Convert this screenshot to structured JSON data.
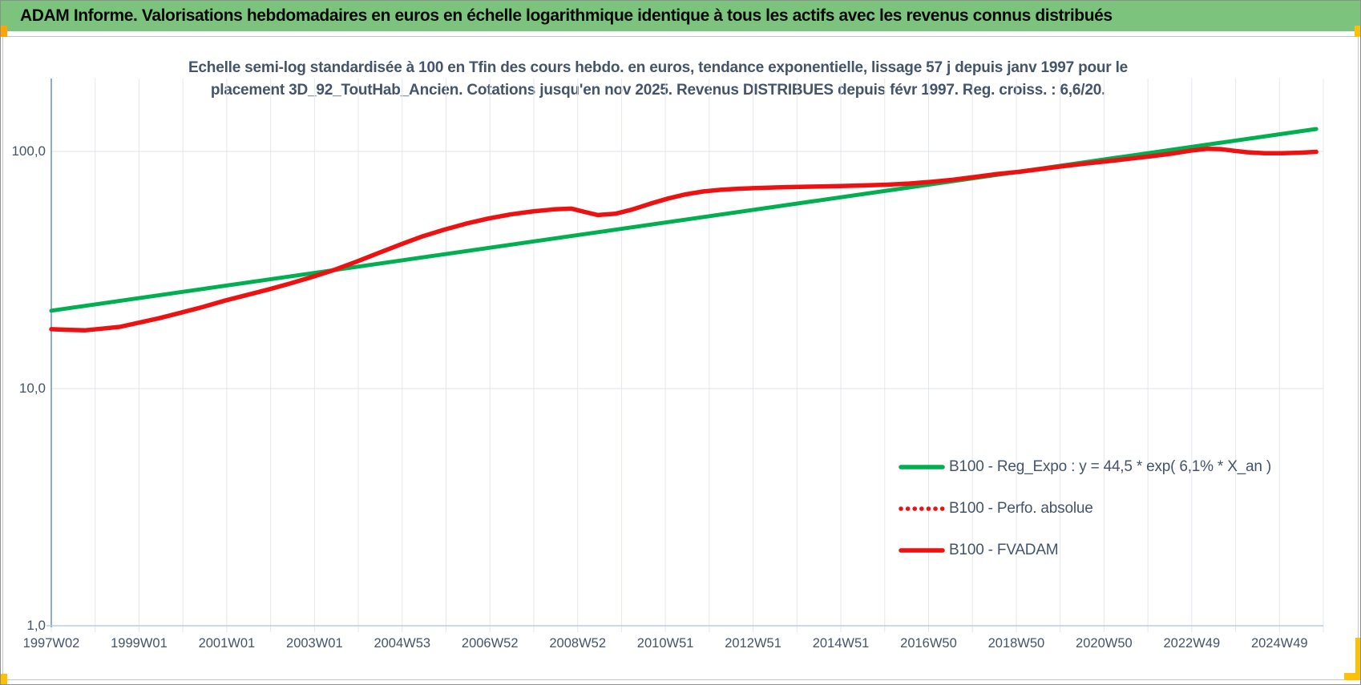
{
  "header": {
    "text": "ADAM Informe. Valorisations hebdomadaires en euros en échelle logarithmique identique à tous les actifs avec les revenus connus distribués",
    "bg_color": "#7cc47e"
  },
  "title": {
    "line1": "Echelle semi-log standardisée à 100 en Tfin des cours hebdo. en euros, tendance exponentielle, lissage 57 j depuis janv 1997 pour le",
    "line2": "placement 3D_92_ToutHab_Ancien. Cotations jusqu'en nov 2025. Revenus DISTRIBUES depuis févr 1997. Reg. croiss. : 6,6/20.",
    "color": "#44546a"
  },
  "colors": {
    "header_green": "#7cc47e",
    "reg_expo_green": "#00b050",
    "series_red": "#ee1111",
    "axis_text": "#44546a",
    "gridline": "#e4e7ee",
    "y_axis_line": "#5b87c5",
    "x_axis_line": "#a9c4e5",
    "marker_gold": "#ffc000",
    "marker_orange": "#ffa400"
  },
  "legend": {
    "items": [
      {
        "label": "B100 - Reg_Expo : y = 44,5 * exp( 6,1% *  X_an )",
        "color": "#00b050",
        "style": "solid"
      },
      {
        "label": "B100 - Perfo. absolue",
        "color": "#ee1111",
        "style": "dotted"
      },
      {
        "label": "B100 - FVADAM",
        "color": "#ee1111",
        "style": "solid"
      }
    ]
  },
  "chart_data": {
    "type": "line",
    "title": "Echelle semi-log standardisée à 100 en Tfin des cours hebdo. en euros, tendance exponentielle, lissage 57 j depuis janv 1997 pour le placement 3D_92_ToutHab_Ancien. Cotations jusqu'en nov 2025. Revenus DISTRIBUES depuis févr 1997. Reg. croiss. : 6,6/20.",
    "x_axis": {
      "tick_labels": [
        "1997W02",
        "1999W01",
        "2001W01",
        "2003W01",
        "2004W53",
        "2006W52",
        "2008W52",
        "2010W51",
        "2012W51",
        "2014W51",
        "2016W50",
        "2018W50",
        "2020W50",
        "2022W49",
        "2024W49"
      ],
      "unit": "ISO week (year W week)",
      "range_years": [
        1997.04,
        2026.0
      ]
    },
    "y_axis": {
      "scale": "log",
      "tick_labels": [
        "100,0",
        "10,0",
        "1,0"
      ],
      "tick_values": [
        100,
        10,
        1
      ],
      "min": 1,
      "max": 200
    },
    "grid": {
      "vertical": "yearly",
      "horizontal": "decades"
    },
    "legend_position": "inside lower-right",
    "series": [
      {
        "name": "B100 - Reg_Expo : y = 44,5 * exp( 6,1% *  X_an )",
        "color": "#00b050",
        "style": "solid",
        "points": [
          [
            1997.04,
            21.3
          ],
          [
            2025.88,
            124.3
          ]
        ]
      },
      {
        "name": "B100 - Perfo. absolue",
        "color": "#ee1111",
        "style": "dotted",
        "points_ref": 2,
        "note": "coincides with B100 - FVADAM, hidden beneath it"
      },
      {
        "name": "B100 - FVADAM",
        "color": "#ee1111",
        "style": "solid",
        "points": [
          [
            1997.04,
            17.8
          ],
          [
            1997.4,
            17.7
          ],
          [
            1997.8,
            17.6
          ],
          [
            1998.2,
            17.9
          ],
          [
            1998.6,
            18.2
          ],
          [
            1999.0,
            18.9
          ],
          [
            1999.5,
            19.8
          ],
          [
            2000.0,
            20.9
          ],
          [
            2000.5,
            22.1
          ],
          [
            2001.0,
            23.5
          ],
          [
            2001.5,
            24.8
          ],
          [
            2002.0,
            26.2
          ],
          [
            2002.5,
            27.8
          ],
          [
            2003.0,
            29.6
          ],
          [
            2003.5,
            31.7
          ],
          [
            2004.0,
            34.3
          ],
          [
            2004.5,
            37.3
          ],
          [
            2005.0,
            40.5
          ],
          [
            2005.5,
            43.8
          ],
          [
            2006.0,
            46.8
          ],
          [
            2006.5,
            49.6
          ],
          [
            2007.0,
            52.1
          ],
          [
            2007.5,
            54.2
          ],
          [
            2008.0,
            55.8
          ],
          [
            2008.5,
            57.0
          ],
          [
            2008.9,
            57.4
          ],
          [
            2009.2,
            55.6
          ],
          [
            2009.5,
            53.9
          ],
          [
            2009.9,
            54.6
          ],
          [
            2010.3,
            57.0
          ],
          [
            2010.7,
            60.2
          ],
          [
            2011.1,
            63.3
          ],
          [
            2011.5,
            65.9
          ],
          [
            2011.9,
            67.8
          ],
          [
            2012.3,
            68.9
          ],
          [
            2012.7,
            69.6
          ],
          [
            2013.1,
            70.1
          ],
          [
            2013.6,
            70.5
          ],
          [
            2014.1,
            70.9
          ],
          [
            2014.6,
            71.2
          ],
          [
            2015.1,
            71.5
          ],
          [
            2015.6,
            71.9
          ],
          [
            2016.1,
            72.4
          ],
          [
            2016.6,
            73.2
          ],
          [
            2017.1,
            74.4
          ],
          [
            2017.6,
            76.0
          ],
          [
            2018.1,
            78.0
          ],
          [
            2018.6,
            80.3
          ],
          [
            2019.1,
            82.0
          ],
          [
            2019.6,
            84.3
          ],
          [
            2020.1,
            86.6
          ],
          [
            2020.6,
            88.8
          ],
          [
            2021.1,
            90.8
          ],
          [
            2021.6,
            93.0
          ],
          [
            2022.1,
            95.4
          ],
          [
            2022.6,
            98.0
          ],
          [
            2023.0,
            100.6
          ],
          [
            2023.4,
            102.6
          ],
          [
            2023.7,
            102.3
          ],
          [
            2024.0,
            100.6
          ],
          [
            2024.3,
            99.2
          ],
          [
            2024.7,
            98.3
          ],
          [
            2025.1,
            98.2
          ],
          [
            2025.5,
            98.8
          ],
          [
            2025.88,
            99.6
          ]
        ]
      }
    ]
  }
}
